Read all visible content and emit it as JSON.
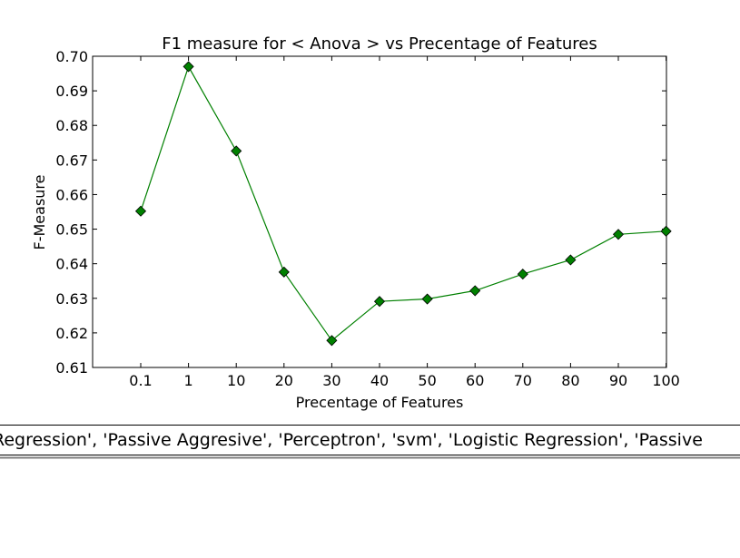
{
  "chart_data": {
    "type": "line",
    "title": "F1 measure for < Anova > vs Precentage of Features",
    "xlabel": "Precentage of Features",
    "ylabel": "F-Measure",
    "categories": [
      "0.1",
      "1",
      "10",
      "20",
      "30",
      "40",
      "50",
      "60",
      "70",
      "80",
      "90",
      "100"
    ],
    "series": [
      {
        "values": [
          0.6552,
          0.697,
          0.6726,
          0.6376,
          0.6178,
          0.6291,
          0.6298,
          0.6322,
          0.637,
          0.6411,
          0.6485,
          0.6494
        ],
        "color": "#008000",
        "marker": "diamond"
      }
    ],
    "ylim": [
      0.61,
      0.7
    ],
    "yticks": [
      "0.61",
      "0.62",
      "0.63",
      "0.64",
      "0.65",
      "0.66",
      "0.67",
      "0.68",
      "0.69",
      "0.70"
    ],
    "grid": false,
    "legend_text": "Regression', 'Passive Aggresive', 'Perceptron', 'svm', 'Logistic Regression', 'Passive"
  }
}
